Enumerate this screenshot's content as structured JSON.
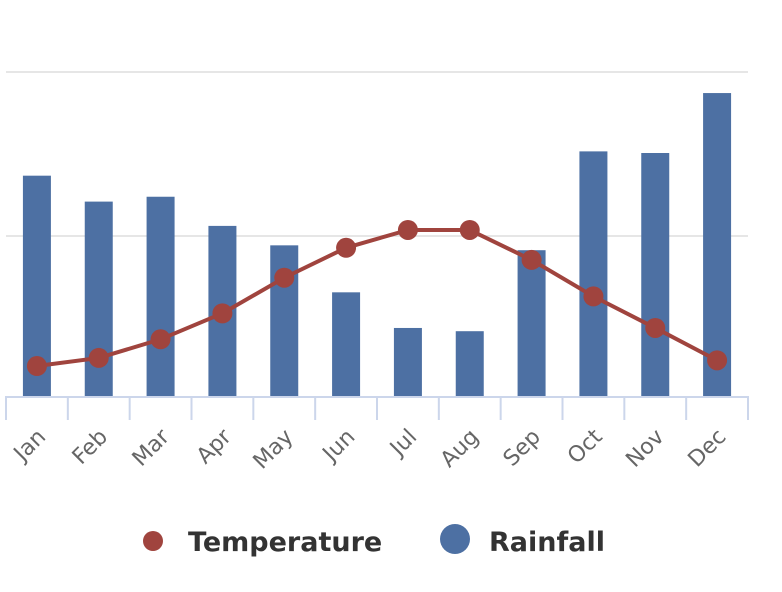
{
  "chart_data": {
    "type": "bar+line",
    "title": "",
    "xlabel": "",
    "ylabel": "",
    "categories": [
      "Jan",
      "Feb",
      "Mar",
      "Apr",
      "May",
      "Jun",
      "Jul",
      "Aug",
      "Sep",
      "Oct",
      "Nov",
      "Dec"
    ],
    "series": [
      {
        "name": "Rainfall",
        "type": "bar",
        "color": "#4d70a3",
        "ylim": [
          0,
          200
        ],
        "values": [
          136,
          120,
          123,
          105,
          93,
          64,
          42,
          40,
          90,
          151,
          150,
          187
        ]
      },
      {
        "name": "Temperature",
        "type": "line",
        "color": "#a0443e",
        "ylim": [
          0,
          40
        ],
        "values": [
          3.7,
          4.7,
          7.0,
          10.2,
          14.6,
          18.3,
          20.5,
          20.5,
          16.8,
          12.3,
          8.4,
          4.4
        ]
      }
    ],
    "grid": true,
    "legend": {
      "placement": "bottom-center",
      "items": [
        "Temperature",
        "Rainfall"
      ]
    }
  }
}
